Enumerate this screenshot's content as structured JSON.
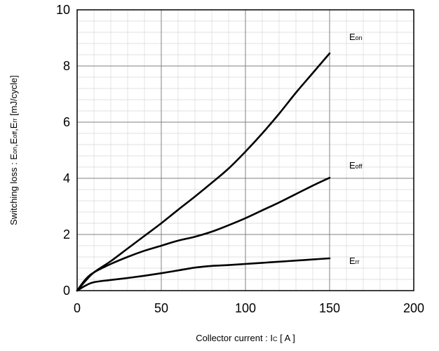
{
  "chart_data": {
    "type": "line",
    "xlabel": {
      "main": "Collector current  :  I",
      "sub": "C",
      "unit": " [ A ]"
    },
    "ylabel": {
      "prefix": "Switching loss  :  E",
      "sub1": "on",
      "sep1": ",E",
      "sub2": "off",
      "sep2": ",E",
      "sub3": "rr",
      "unit": " [mJ/cycle]"
    },
    "xlim": [
      0,
      200
    ],
    "ylim": [
      0,
      10
    ],
    "x_ticks": [
      0,
      50,
      100,
      150,
      200
    ],
    "y_ticks": [
      0,
      2,
      4,
      6,
      8,
      10
    ],
    "x_major_step": 50,
    "x_minor_step": 10,
    "y_major_step": 2,
    "y_minor_step": 0.4,
    "grid": true,
    "series": [
      {
        "name_base": "E",
        "name_sub": "on",
        "x": [
          0,
          5,
          10,
          20,
          30,
          40,
          50,
          60,
          70,
          80,
          90,
          100,
          110,
          120,
          130,
          140,
          150
        ],
        "y": [
          0,
          0.35,
          0.65,
          1.05,
          1.5,
          1.95,
          2.4,
          2.88,
          3.35,
          3.84,
          4.35,
          4.95,
          5.6,
          6.3,
          7.05,
          7.75,
          8.45
        ]
      },
      {
        "name_base": "E",
        "name_sub": "off",
        "x": [
          0,
          5,
          10,
          20,
          30,
          40,
          50,
          60,
          70,
          80,
          90,
          100,
          110,
          120,
          130,
          140,
          150
        ],
        "y": [
          0,
          0.4,
          0.65,
          0.95,
          1.2,
          1.42,
          1.6,
          1.78,
          1.92,
          2.1,
          2.33,
          2.58,
          2.86,
          3.14,
          3.44,
          3.74,
          4.02
        ]
      },
      {
        "name_base": "E",
        "name_sub": "rr",
        "x": [
          0,
          5,
          10,
          20,
          30,
          40,
          50,
          60,
          70,
          80,
          90,
          100,
          110,
          120,
          130,
          140,
          150
        ],
        "y": [
          0,
          0.18,
          0.3,
          0.38,
          0.45,
          0.53,
          0.62,
          0.72,
          0.82,
          0.88,
          0.91,
          0.95,
          0.99,
          1.03,
          1.07,
          1.11,
          1.15
        ]
      }
    ]
  }
}
